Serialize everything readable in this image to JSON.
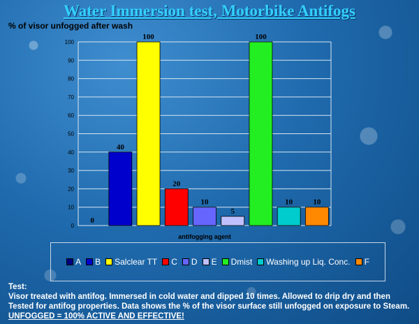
{
  "title": "Water Immersion test, Motorbike Antifogs",
  "chart_data": {
    "type": "bar",
    "ylabel": "% of visor unfogged after wash",
    "xlabel": "antifogging agent",
    "ylim": [
      0,
      100
    ],
    "yticks": [
      0,
      10,
      20,
      30,
      40,
      50,
      60,
      70,
      80,
      90,
      100
    ],
    "grid": true,
    "legend": "bottom",
    "series": [
      {
        "name": "A",
        "value": 0,
        "label": "0",
        "color": "#000080"
      },
      {
        "name": "B",
        "value": 40,
        "label": "40",
        "color": "#0000cc"
      },
      {
        "name": "Salclear TT",
        "value": 100,
        "label": "100",
        "color": "#ffff00"
      },
      {
        "name": "C",
        "value": 20,
        "label": "20",
        "color": "#ff0000"
      },
      {
        "name": "D",
        "value": 10,
        "label": "10",
        "color": "#6666ff"
      },
      {
        "name": "E",
        "value": 5,
        "label": "5",
        "color": "#c0c0ff"
      },
      {
        "name": "Dmist",
        "value": 100,
        "label": "100",
        "color": "#22ee22"
      },
      {
        "name": "Washing up Liq. Conc.",
        "value": 10,
        "label": "10",
        "color": "#00cccc"
      },
      {
        "name": "F",
        "value": 10,
        "label": "10",
        "color": "#ff8800"
      }
    ]
  },
  "note": {
    "heading": "Test:",
    "body": "Visor treated with antifog. Immersed in cold water and dipped 10 times. Allowed to drip dry and then Tested for antifog properties. Data shows the % of the visor surface still unfogged on exposure to Steam.",
    "emphasis": "UNFOGGED = 100% ACTIVE AND EFFECTIVE!"
  }
}
